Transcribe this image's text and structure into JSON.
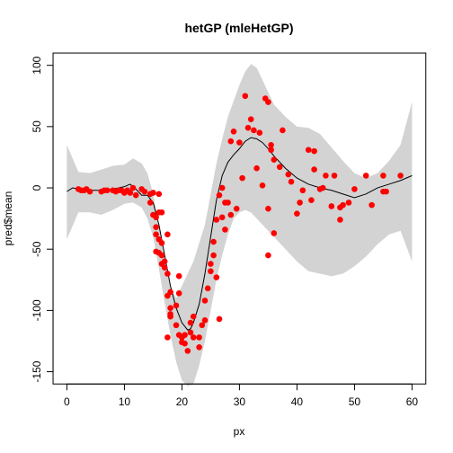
{
  "chart_data": {
    "type": "scatter",
    "title": "hetGP (mleHetGP)",
    "xlabel": "px",
    "ylabel": "pred$mean",
    "xlim": [
      -2.4,
      62.4
    ],
    "ylim": [
      -160,
      110
    ],
    "xticks": [
      0,
      10,
      20,
      30,
      40,
      50,
      60
    ],
    "yticks": [
      -150,
      -100,
      -50,
      0,
      50,
      100
    ],
    "grid": false,
    "legend": "none",
    "colors": {
      "points": "#ff0000",
      "band": "#d3d3d3",
      "mean": "#000000"
    },
    "band": {
      "x": [
        0,
        2,
        4,
        6,
        8,
        10,
        11.5,
        13,
        14,
        15,
        16,
        17,
        18,
        19,
        20,
        21,
        22,
        23,
        24,
        25,
        26,
        27,
        28,
        29,
        30,
        31,
        32,
        33,
        34,
        35,
        36,
        37,
        38,
        40,
        42,
        44,
        46,
        48,
        50,
        52,
        54,
        56,
        58,
        60
      ],
      "upper": [
        35,
        13,
        12,
        15,
        18,
        19,
        24,
        20,
        12,
        -5,
        -30,
        -58,
        -80,
        -90,
        -80,
        -70,
        -60,
        -45,
        -30,
        -5,
        20,
        40,
        58,
        71,
        84,
        95,
        101,
        98,
        88,
        78,
        68,
        63,
        58,
        50,
        49,
        44,
        33,
        22,
        12,
        8,
        12,
        22,
        35,
        70
      ],
      "lower": [
        -42,
        -20,
        -20,
        -22,
        -18,
        -13,
        -12,
        -16,
        -25,
        -40,
        -66,
        -94,
        -120,
        -142,
        -157,
        -162,
        -160,
        -145,
        -125,
        -100,
        -75,
        -55,
        -38,
        -25,
        -20,
        -18,
        -20,
        -25,
        -30,
        -35,
        -40,
        -45,
        -50,
        -60,
        -68,
        -70,
        -72,
        -70,
        -64,
        -56,
        -46,
        -38,
        -35,
        -60
      ]
    },
    "mean": {
      "x": [
        0,
        1,
        2,
        4,
        6,
        8,
        10,
        11,
        12,
        13,
        14,
        15,
        16,
        17,
        18,
        19,
        20,
        21,
        21.5,
        22,
        23,
        24,
        25,
        26,
        27,
        28,
        29,
        30,
        31,
        32,
        33,
        34,
        35,
        36,
        38,
        40,
        42,
        44,
        46,
        48,
        50,
        52,
        54,
        56,
        58,
        60
      ],
      "y": [
        -3,
        0,
        -1,
        -2,
        -2,
        -1,
        1,
        3,
        -1,
        -6,
        -6,
        -12,
        -30,
        -55,
        -80,
        -98,
        -110,
        -116,
        -115,
        -110,
        -95,
        -70,
        -40,
        -10,
        10,
        21,
        27,
        32,
        38,
        41,
        40,
        37,
        32,
        26,
        16,
        8,
        3,
        0,
        -2,
        -5,
        -8,
        -5,
        0,
        3,
        6,
        10
      ]
    },
    "points": [
      [
        2,
        -1
      ],
      [
        2.5,
        -2
      ],
      [
        3,
        -2
      ],
      [
        3.4,
        -1
      ],
      [
        4,
        -3
      ],
      [
        6,
        -3
      ],
      [
        6.5,
        -2
      ],
      [
        7,
        -2
      ],
      [
        8,
        -2
      ],
      [
        8.5,
        -3
      ],
      [
        9,
        -2
      ],
      [
        9.5,
        -2
      ],
      [
        10,
        -4
      ],
      [
        10.5,
        -2
      ],
      [
        11,
        -4
      ],
      [
        11.5,
        0
      ],
      [
        12,
        -6
      ],
      [
        13,
        -1
      ],
      [
        13.5,
        -3
      ],
      [
        14.5,
        -5
      ],
      [
        15,
        -4
      ],
      [
        16,
        -5
      ],
      [
        14.5,
        -12
      ],
      [
        15,
        -22
      ],
      [
        15.5,
        -24
      ],
      [
        15.5,
        -32
      ],
      [
        16,
        -20
      ],
      [
        16.5,
        -20
      ],
      [
        15.5,
        -38
      ],
      [
        16,
        -42
      ],
      [
        16.5,
        -45
      ],
      [
        15.5,
        -52
      ],
      [
        16,
        -53
      ],
      [
        16.5,
        -55
      ],
      [
        17,
        -60
      ],
      [
        16.5,
        -62
      ],
      [
        17,
        -65
      ],
      [
        17.5,
        -70
      ],
      [
        17.5,
        -38
      ],
      [
        18,
        -85
      ],
      [
        17.5,
        -88
      ],
      [
        18,
        -98
      ],
      [
        18,
        -103
      ],
      [
        18,
        -105
      ],
      [
        19,
        -96
      ],
      [
        19.5,
        -72
      ],
      [
        19.5,
        -86
      ],
      [
        19,
        -112
      ],
      [
        19.5,
        -120
      ],
      [
        17.5,
        -122
      ],
      [
        20,
        -122
      ],
      [
        20,
        -126
      ],
      [
        20.5,
        -120
      ],
      [
        20.5,
        -127
      ],
      [
        21,
        -133
      ],
      [
        21.5,
        -118
      ],
      [
        21.5,
        -110
      ],
      [
        22,
        -105
      ],
      [
        22,
        -122
      ],
      [
        23,
        -122
      ],
      [
        23,
        -130
      ],
      [
        23.5,
        -112
      ],
      [
        24,
        -108
      ],
      [
        24,
        -92
      ],
      [
        24.5,
        -82
      ],
      [
        25,
        -62
      ],
      [
        25,
        -68
      ],
      [
        25.5,
        -44
      ],
      [
        25.5,
        -55
      ],
      [
        26,
        -73
      ],
      [
        26.5,
        -107
      ],
      [
        26,
        -26
      ],
      [
        27,
        -24
      ],
      [
        27.5,
        -34
      ],
      [
        26.5,
        -6
      ],
      [
        27.5,
        -12
      ],
      [
        27,
        0
      ],
      [
        28,
        -12
      ],
      [
        28.5,
        -22
      ],
      [
        29.5,
        -17
      ],
      [
        28.5,
        38
      ],
      [
        29,
        46
      ],
      [
        30,
        37
      ],
      [
        30.5,
        8
      ],
      [
        31,
        75
      ],
      [
        31.5,
        49
      ],
      [
        32,
        56
      ],
      [
        32.5,
        47
      ],
      [
        33,
        16
      ],
      [
        33.5,
        45
      ],
      [
        34,
        2
      ],
      [
        34.5,
        73
      ],
      [
        35,
        70
      ],
      [
        35,
        -17
      ],
      [
        35.5,
        35
      ],
      [
        35.5,
        31
      ],
      [
        36,
        23
      ],
      [
        36,
        -37
      ],
      [
        35,
        -55
      ],
      [
        37,
        17
      ],
      [
        37.5,
        47
      ],
      [
        38.5,
        11
      ],
      [
        39,
        5
      ],
      [
        40,
        -21
      ],
      [
        40.5,
        -12
      ],
      [
        41,
        -2
      ],
      [
        42,
        31
      ],
      [
        42.5,
        -10
      ],
      [
        43,
        30
      ],
      [
        43,
        15
      ],
      [
        44,
        -1
      ],
      [
        44.5,
        0
      ],
      [
        45,
        10
      ],
      [
        46,
        -15
      ],
      [
        46.5,
        10
      ],
      [
        47.5,
        -16
      ],
      [
        47.5,
        -26
      ],
      [
        48,
        -14
      ],
      [
        49,
        -12
      ],
      [
        50,
        -1
      ],
      [
        52,
        10
      ],
      [
        53,
        -14
      ],
      [
        55,
        -3
      ],
      [
        55.5,
        -3
      ],
      [
        55,
        10
      ],
      [
        58,
        10
      ]
    ]
  }
}
